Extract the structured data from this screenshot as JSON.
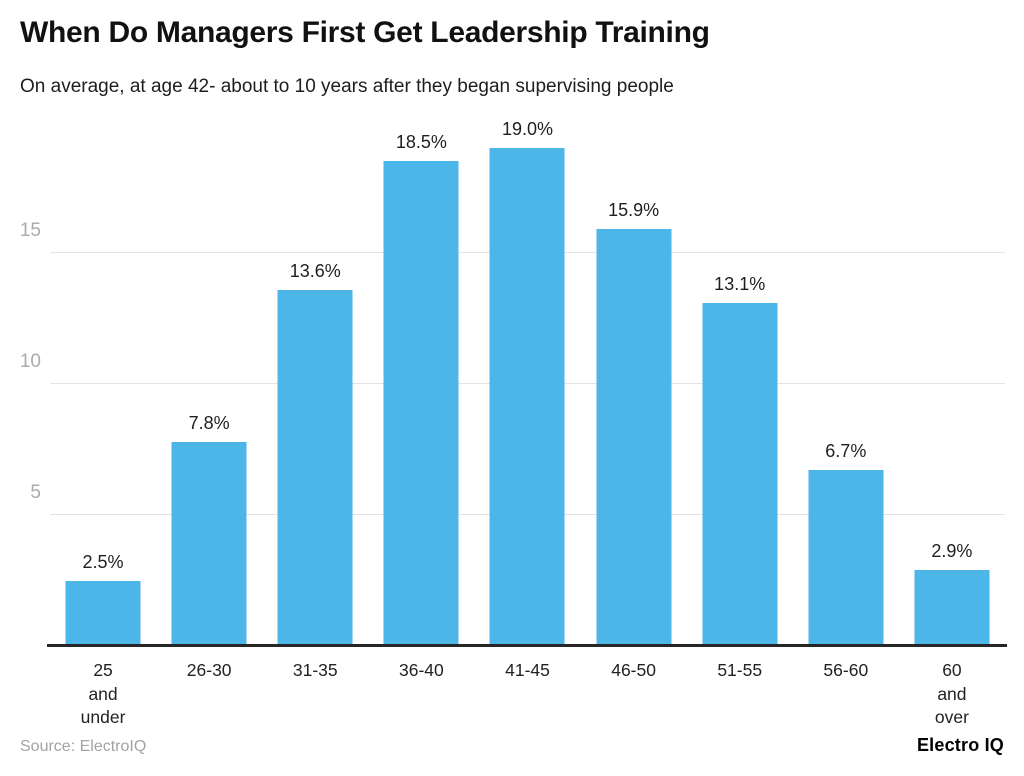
{
  "header": {
    "title": "When Do Managers First Get Leadership Training",
    "subtitle": "On average, at age 42- about to 10 years after they began supervising people"
  },
  "chart_data": {
    "type": "bar",
    "title": "When Do Managers First Get Leadership Training",
    "categories": [
      "25 and\nunder",
      "26-30",
      "31-35",
      "36-40",
      "41-45",
      "46-50",
      "51-55",
      "56-60",
      "60 and\nover"
    ],
    "values": [
      2.5,
      7.8,
      13.6,
      18.5,
      19.0,
      15.9,
      13.1,
      6.7,
      2.9
    ],
    "value_labels": [
      "2.5%",
      "7.8%",
      "13.6%",
      "18.5%",
      "19.0%",
      "15.9%",
      "13.1%",
      "6.7%",
      "2.9%"
    ],
    "xlabel": "",
    "ylabel": "",
    "ylim": [
      0,
      20
    ],
    "ytick_values": [
      5,
      10,
      15
    ],
    "ytick_labels": [
      "5",
      "10",
      "15"
    ],
    "grid": true,
    "legend": false,
    "bar_color": "#4CB6E9",
    "gridline_color": "#e3e3e3",
    "axis_line_color": "#262626"
  },
  "footer": {
    "source": "Source: ElectroIQ",
    "logo": "Electro IQ"
  }
}
